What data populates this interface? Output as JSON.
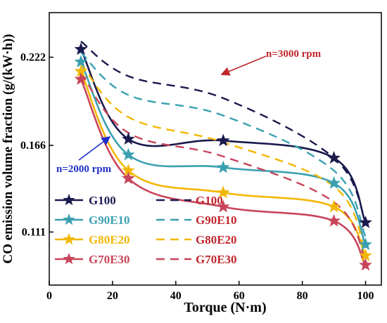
{
  "chart_data": {
    "type": "line",
    "xlabel": "Torque (N·m)",
    "ylabel": "CO emission volume fraction (g/(kW·h))",
    "xlim": [
      0,
      105
    ],
    "ylim": [
      0.0773,
      0.2503
    ],
    "x_ticks": [
      0,
      20,
      40,
      60,
      80,
      100
    ],
    "y_ticks": [
      0.111,
      0.166,
      0.222
    ],
    "grid": false,
    "legend": "bottom-left",
    "series": [
      {
        "name": "G100",
        "group": "2000",
        "color": "#1a1a4e",
        "dashed": false,
        "marker": true,
        "points": [
          [
            10,
            0.227
          ],
          [
            25,
            0.17
          ],
          [
            55,
            0.169
          ],
          [
            90,
            0.158
          ],
          [
            100,
            0.117
          ]
        ]
      },
      {
        "name": "G90E10",
        "group": "2000",
        "color": "#3aa0b0",
        "dashed": false,
        "marker": true,
        "points": [
          [
            10,
            0.219
          ],
          [
            25,
            0.16
          ],
          [
            55,
            0.152
          ],
          [
            90,
            0.142
          ],
          [
            100,
            0.103
          ]
        ]
      },
      {
        "name": "G80E20",
        "group": "2000",
        "color": "#f2b705",
        "dashed": false,
        "marker": true,
        "points": [
          [
            10,
            0.213
          ],
          [
            25,
            0.15
          ],
          [
            55,
            0.136
          ],
          [
            90,
            0.127
          ],
          [
            100,
            0.096
          ]
        ]
      },
      {
        "name": "G70E30",
        "group": "2000",
        "color": "#c8445a",
        "dashed": false,
        "marker": true,
        "points": [
          [
            10,
            0.208
          ],
          [
            25,
            0.145
          ],
          [
            55,
            0.127
          ],
          [
            90,
            0.118
          ],
          [
            100,
            0.09
          ]
        ]
      },
      {
        "name": "G100",
        "group": "3000",
        "color": "#1a1a4e",
        "dashed": true,
        "marker": false,
        "points": [
          [
            10,
            0.232
          ],
          [
            25,
            0.21
          ],
          [
            55,
            0.196
          ],
          [
            90,
            0.158
          ],
          [
            100,
            0.118
          ]
        ]
      },
      {
        "name": "G90E10",
        "group": "3000",
        "color": "#3aa0b0",
        "dashed": true,
        "marker": false,
        "points": [
          [
            10,
            0.225
          ],
          [
            25,
            0.198
          ],
          [
            55,
            0.185
          ],
          [
            90,
            0.15
          ],
          [
            100,
            0.108
          ]
        ]
      },
      {
        "name": "G80E20",
        "group": "3000",
        "color": "#f2b705",
        "dashed": true,
        "marker": false,
        "points": [
          [
            10,
            0.218
          ],
          [
            25,
            0.184
          ],
          [
            55,
            0.168
          ],
          [
            90,
            0.14
          ],
          [
            100,
            0.098
          ]
        ]
      },
      {
        "name": "G70E30",
        "group": "3000",
        "color": "#c8445a",
        "dashed": true,
        "marker": false,
        "points": [
          [
            10,
            0.212
          ],
          [
            25,
            0.174
          ],
          [
            55,
            0.159
          ],
          [
            90,
            0.13
          ],
          [
            100,
            0.093
          ]
        ]
      }
    ],
    "annotations": [
      {
        "text": "n=3000 rpm",
        "color": "#c0272d"
      },
      {
        "text": "n=2000 rpm",
        "color": "#1f2fc8"
      }
    ]
  }
}
